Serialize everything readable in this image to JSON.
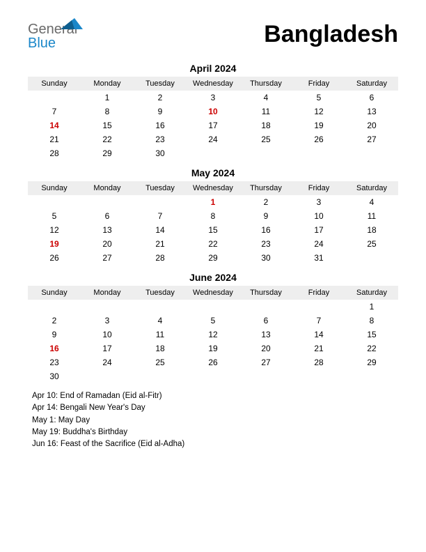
{
  "logo": {
    "text_general": "General",
    "text_blue": "Blue"
  },
  "country": "Bangladesh",
  "colors": {
    "background": "#ffffff",
    "header_bg": "#eeeeee",
    "text": "#000000",
    "holiday": "#cc0000",
    "logo_gray": "#6a6a6a",
    "logo_blue": "#1b87c9"
  },
  "weekdays": [
    "Sunday",
    "Monday",
    "Tuesday",
    "Wednesday",
    "Thursday",
    "Friday",
    "Saturday"
  ],
  "months": [
    {
      "title": "April 2024",
      "weeks": [
        [
          {
            "d": ""
          },
          {
            "d": "1"
          },
          {
            "d": "2"
          },
          {
            "d": "3"
          },
          {
            "d": "4"
          },
          {
            "d": "5"
          },
          {
            "d": "6"
          }
        ],
        [
          {
            "d": "7"
          },
          {
            "d": "8"
          },
          {
            "d": "9"
          },
          {
            "d": "10",
            "h": true
          },
          {
            "d": "11"
          },
          {
            "d": "12"
          },
          {
            "d": "13"
          }
        ],
        [
          {
            "d": "14",
            "h": true
          },
          {
            "d": "15"
          },
          {
            "d": "16"
          },
          {
            "d": "17"
          },
          {
            "d": "18"
          },
          {
            "d": "19"
          },
          {
            "d": "20"
          }
        ],
        [
          {
            "d": "21"
          },
          {
            "d": "22"
          },
          {
            "d": "23"
          },
          {
            "d": "24"
          },
          {
            "d": "25"
          },
          {
            "d": "26"
          },
          {
            "d": "27"
          }
        ],
        [
          {
            "d": "28"
          },
          {
            "d": "29"
          },
          {
            "d": "30"
          },
          {
            "d": ""
          },
          {
            "d": ""
          },
          {
            "d": ""
          },
          {
            "d": ""
          }
        ]
      ]
    },
    {
      "title": "May 2024",
      "weeks": [
        [
          {
            "d": ""
          },
          {
            "d": ""
          },
          {
            "d": ""
          },
          {
            "d": "1",
            "h": true
          },
          {
            "d": "2"
          },
          {
            "d": "3"
          },
          {
            "d": "4"
          }
        ],
        [
          {
            "d": "5"
          },
          {
            "d": "6"
          },
          {
            "d": "7"
          },
          {
            "d": "8"
          },
          {
            "d": "9"
          },
          {
            "d": "10"
          },
          {
            "d": "11"
          }
        ],
        [
          {
            "d": "12"
          },
          {
            "d": "13"
          },
          {
            "d": "14"
          },
          {
            "d": "15"
          },
          {
            "d": "16"
          },
          {
            "d": "17"
          },
          {
            "d": "18"
          }
        ],
        [
          {
            "d": "19",
            "h": true
          },
          {
            "d": "20"
          },
          {
            "d": "21"
          },
          {
            "d": "22"
          },
          {
            "d": "23"
          },
          {
            "d": "24"
          },
          {
            "d": "25"
          }
        ],
        [
          {
            "d": "26"
          },
          {
            "d": "27"
          },
          {
            "d": "28"
          },
          {
            "d": "29"
          },
          {
            "d": "30"
          },
          {
            "d": "31"
          },
          {
            "d": ""
          }
        ]
      ]
    },
    {
      "title": "June 2024",
      "weeks": [
        [
          {
            "d": ""
          },
          {
            "d": ""
          },
          {
            "d": ""
          },
          {
            "d": ""
          },
          {
            "d": ""
          },
          {
            "d": ""
          },
          {
            "d": "1"
          }
        ],
        [
          {
            "d": "2"
          },
          {
            "d": "3"
          },
          {
            "d": "4"
          },
          {
            "d": "5"
          },
          {
            "d": "6"
          },
          {
            "d": "7"
          },
          {
            "d": "8"
          }
        ],
        [
          {
            "d": "9"
          },
          {
            "d": "10"
          },
          {
            "d": "11"
          },
          {
            "d": "12"
          },
          {
            "d": "13"
          },
          {
            "d": "14"
          },
          {
            "d": "15"
          }
        ],
        [
          {
            "d": "16",
            "h": true
          },
          {
            "d": "17"
          },
          {
            "d": "18"
          },
          {
            "d": "19"
          },
          {
            "d": "20"
          },
          {
            "d": "21"
          },
          {
            "d": "22"
          }
        ],
        [
          {
            "d": "23"
          },
          {
            "d": "24"
          },
          {
            "d": "25"
          },
          {
            "d": "26"
          },
          {
            "d": "27"
          },
          {
            "d": "28"
          },
          {
            "d": "29"
          }
        ],
        [
          {
            "d": "30"
          },
          {
            "d": ""
          },
          {
            "d": ""
          },
          {
            "d": ""
          },
          {
            "d": ""
          },
          {
            "d": ""
          },
          {
            "d": ""
          }
        ]
      ]
    }
  ],
  "holidays": [
    "Apr 10: End of Ramadan (Eid al-Fitr)",
    "Apr 14: Bengali New Year's Day",
    "May 1: May Day",
    "May 19: Buddha's Birthday",
    "Jun 16: Feast of the Sacrifice (Eid al-Adha)"
  ]
}
